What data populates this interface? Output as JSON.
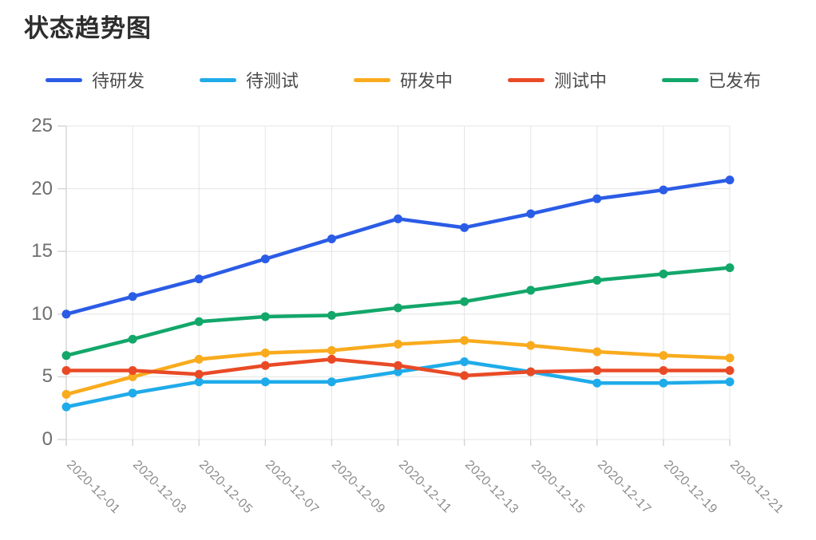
{
  "page": {
    "title": "状态趋势图"
  },
  "chart_data": {
    "type": "line",
    "title": "状态趋势图",
    "xlabel": "",
    "ylabel": "",
    "x": [
      "2020-12-01",
      "2020-12-03",
      "2020-12-05",
      "2020-12-07",
      "2020-12-09",
      "2020-12-11",
      "2020-12-13",
      "2020-12-15",
      "2020-12-17",
      "2020-12-19",
      "2020-12-21"
    ],
    "series": [
      {
        "name": "待研发",
        "color": "#2b5ce6",
        "values": [
          10.0,
          11.4,
          12.8,
          14.4,
          16.0,
          17.6,
          16.9,
          18.0,
          19.2,
          19.9,
          20.7
        ]
      },
      {
        "name": "待测试",
        "color": "#1fabe9",
        "values": [
          2.6,
          3.7,
          4.6,
          4.6,
          4.6,
          5.4,
          6.2,
          5.4,
          4.5,
          4.5,
          4.6
        ]
      },
      {
        "name": "研发中",
        "color": "#f9ab1e",
        "values": [
          3.6,
          5.0,
          6.4,
          6.9,
          7.1,
          7.6,
          7.9,
          7.5,
          7.0,
          6.7,
          6.5
        ]
      },
      {
        "name": "测试中",
        "color": "#e94a26",
        "values": [
          5.5,
          5.5,
          5.2,
          5.9,
          6.4,
          5.9,
          5.1,
          5.4,
          5.5,
          5.5,
          5.5
        ]
      },
      {
        "name": "已发布",
        "color": "#13a76a",
        "values": [
          6.7,
          8.0,
          9.4,
          9.8,
          9.9,
          10.5,
          11.0,
          11.9,
          12.7,
          13.2,
          13.7
        ]
      }
    ],
    "yticks": [
      0,
      5,
      10,
      15,
      20,
      25
    ],
    "ylim": [
      0,
      25
    ],
    "grid": true,
    "legend_position": "top",
    "x_label_rotation_deg": 45,
    "style": {
      "grid_color": "#e4e4e4",
      "axis_color": "#d4d4d4",
      "y_label_color": "#6e6e6e",
      "x_label_color": "#8c8c8c",
      "title_color": "#2d2d2d",
      "legend_text_color": "#4b4b4b",
      "background": "#ffffff"
    }
  }
}
